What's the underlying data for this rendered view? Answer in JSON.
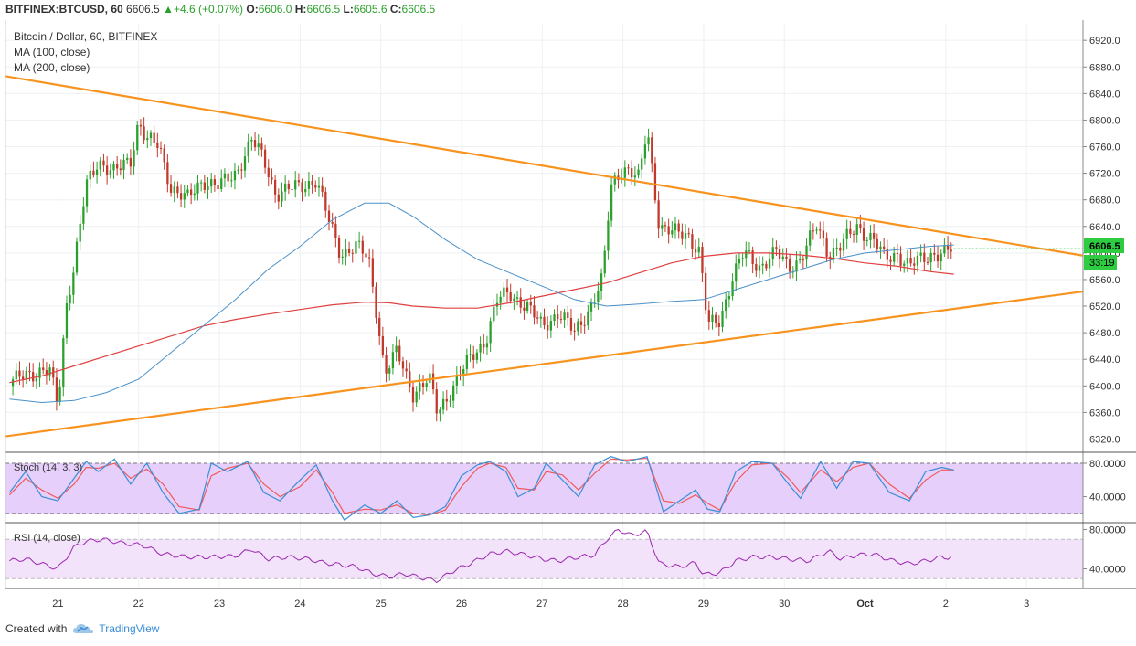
{
  "header": {
    "symbol": "BITFINEX:BTCUSD, 60",
    "last": "6606.5",
    "change": "+4.6 (+0.07%)",
    "o_label": "O:",
    "o_val": "6606.0",
    "h_label": "H:",
    "h_val": "6606.5",
    "l_label": "L:",
    "l_val": "6605.6",
    "c_label": "C:",
    "c_val": "6606.5"
  },
  "legend": {
    "title": "Bitcoin / Dollar, 60, BITFINEX",
    "ma100": "MA (100, close)",
    "ma200": "MA (200, close)"
  },
  "price_badge": "6606.5",
  "countdown_badge": "33:19",
  "stoch_label": "Stoch (14, 3, 3)",
  "rsi_label": "RSI (14, close)",
  "footer": {
    "created_with": "Created with",
    "brand": "TradingView"
  },
  "colors": {
    "up": "#2ca02c",
    "down": "#c0392b",
    "ma100": "#4a90c8",
    "ma200": "#e04040",
    "trend": "#f7931e",
    "stoch_fill": "#e6cffa",
    "rsi_fill": "#f2e3fb",
    "rsi_line": "#9c27b0",
    "stoch_k": "#3a8ed6",
    "stoch_d": "#f05a5a"
  },
  "chart_data": [
    {
      "type": "candlestick",
      "title": "Bitcoin / Dollar, 60, BITFINEX",
      "x_ticks": [
        "21",
        "22",
        "23",
        "24",
        "25",
        "26",
        "27",
        "28",
        "29",
        "30",
        "Oct",
        "2",
        "3"
      ],
      "y_ticks": [
        6320,
        6360,
        6400,
        6440,
        6480,
        6520,
        6560,
        6600,
        6640,
        6680,
        6720,
        6760,
        6800,
        6840,
        6880,
        6920
      ],
      "y_tick_labels": [
        "6320.0",
        "6360.0",
        "6400.0",
        "6440.0",
        "6480.0",
        "6520.0",
        "6560.0",
        "6600.0",
        "6640.0",
        "6680.0",
        "6720.0",
        "6760.0",
        "6800.0",
        "6840.0",
        "6880.0",
        "6920.0"
      ],
      "ylim": [
        6300,
        6945
      ],
      "xlim_days": [
        20.35,
        33.7
      ],
      "price_path": [
        [
          20.4,
          6400
        ],
        [
          20.6,
          6420
        ],
        [
          20.9,
          6420
        ],
        [
          21.0,
          6370
        ],
        [
          21.1,
          6520
        ],
        [
          21.2,
          6580
        ],
        [
          21.35,
          6700
        ],
        [
          21.5,
          6740
        ],
        [
          21.7,
          6720
        ],
        [
          21.9,
          6740
        ],
        [
          22.0,
          6800
        ],
        [
          22.1,
          6770
        ],
        [
          22.25,
          6760
        ],
        [
          22.4,
          6700
        ],
        [
          22.6,
          6680
        ],
        [
          22.8,
          6710
        ],
        [
          23.0,
          6700
        ],
        [
          23.2,
          6720
        ],
        [
          23.4,
          6770
        ],
        [
          23.55,
          6740
        ],
        [
          23.7,
          6690
        ],
        [
          24.0,
          6700
        ],
        [
          24.2,
          6710
        ],
        [
          24.35,
          6650
        ],
        [
          24.5,
          6600
        ],
        [
          24.7,
          6610
        ],
        [
          24.85,
          6590
        ],
        [
          24.95,
          6510
        ],
        [
          25.05,
          6420
        ],
        [
          25.2,
          6450
        ],
        [
          25.4,
          6390
        ],
        [
          25.6,
          6410
        ],
        [
          25.7,
          6360
        ],
        [
          25.9,
          6400
        ],
        [
          26.1,
          6440
        ],
        [
          26.3,
          6470
        ],
        [
          26.45,
          6530
        ],
        [
          26.6,
          6540
        ],
        [
          26.8,
          6520
        ],
        [
          27.0,
          6490
        ],
        [
          27.2,
          6510
        ],
        [
          27.4,
          6480
        ],
        [
          27.6,
          6520
        ],
        [
          27.75,
          6560
        ],
        [
          27.85,
          6700
        ],
        [
          28.0,
          6730
        ],
        [
          28.2,
          6710
        ],
        [
          28.3,
          6790
        ],
        [
          28.45,
          6640
        ],
        [
          28.6,
          6630
        ],
        [
          28.8,
          6630
        ],
        [
          28.95,
          6600
        ],
        [
          29.05,
          6490
        ],
        [
          29.2,
          6500
        ],
        [
          29.35,
          6560
        ],
        [
          29.5,
          6600
        ],
        [
          29.7,
          6580
        ],
        [
          29.9,
          6600
        ],
        [
          30.05,
          6580
        ],
        [
          30.2,
          6590
        ],
        [
          30.4,
          6640
        ],
        [
          30.55,
          6600
        ],
        [
          30.7,
          6610
        ],
        [
          30.9,
          6640
        ],
        [
          31.1,
          6620
        ],
        [
          31.25,
          6590
        ],
        [
          31.4,
          6600
        ],
        [
          31.55,
          6580
        ],
        [
          31.7,
          6590
        ],
        [
          31.85,
          6600
        ],
        [
          32.0,
          6600
        ],
        [
          32.1,
          6606.5
        ]
      ],
      "ma100_path": [
        [
          20.4,
          6380
        ],
        [
          20.8,
          6375
        ],
        [
          21.2,
          6378
        ],
        [
          21.6,
          6390
        ],
        [
          22.0,
          6410
        ],
        [
          22.4,
          6450
        ],
        [
          22.8,
          6490
        ],
        [
          23.2,
          6530
        ],
        [
          23.6,
          6575
        ],
        [
          24.0,
          6610
        ],
        [
          24.4,
          6650
        ],
        [
          24.8,
          6675
        ],
        [
          25.1,
          6675
        ],
        [
          25.4,
          6655
        ],
        [
          25.8,
          6620
        ],
        [
          26.2,
          6590
        ],
        [
          26.6,
          6570
        ],
        [
          27.0,
          6550
        ],
        [
          27.4,
          6530
        ],
        [
          27.8,
          6520
        ],
        [
          28.2,
          6523
        ],
        [
          28.6,
          6527
        ],
        [
          29.0,
          6530
        ],
        [
          29.4,
          6545
        ],
        [
          29.8,
          6560
        ],
        [
          30.2,
          6575
        ],
        [
          30.6,
          6590
        ],
        [
          31.0,
          6600
        ],
        [
          31.4,
          6605
        ],
        [
          31.8,
          6610
        ],
        [
          32.1,
          6612
        ]
      ],
      "ma200_path": [
        [
          20.4,
          6405
        ],
        [
          20.8,
          6415
        ],
        [
          21.2,
          6430
        ],
        [
          21.6,
          6445
        ],
        [
          22.0,
          6460
        ],
        [
          22.4,
          6475
        ],
        [
          22.8,
          6490
        ],
        [
          23.2,
          6500
        ],
        [
          23.6,
          6508
        ],
        [
          24.0,
          6515
        ],
        [
          24.4,
          6522
        ],
        [
          24.8,
          6526
        ],
        [
          25.1,
          6525
        ],
        [
          25.4,
          6520
        ],
        [
          25.8,
          6517
        ],
        [
          26.2,
          6517
        ],
        [
          26.6,
          6525
        ],
        [
          27.0,
          6535
        ],
        [
          27.4,
          6545
        ],
        [
          27.8,
          6555
        ],
        [
          28.2,
          6570
        ],
        [
          28.6,
          6585
        ],
        [
          29.0,
          6595
        ],
        [
          29.4,
          6600
        ],
        [
          29.8,
          6600
        ],
        [
          30.2,
          6597
        ],
        [
          30.6,
          6592
        ],
        [
          31.0,
          6585
        ],
        [
          31.4,
          6580
        ],
        [
          31.8,
          6572
        ],
        [
          32.1,
          6568
        ]
      ],
      "trendlines": [
        {
          "from": [
            20.35,
            6866
          ],
          "to": [
            33.7,
            6596
          ]
        },
        {
          "from": [
            20.35,
            6324
          ],
          "to": [
            33.7,
            6542
          ]
        }
      ]
    },
    {
      "type": "line",
      "name": "Stoch (14, 3, 3)",
      "y_ticks": [
        40,
        80
      ],
      "y_tick_labels": [
        "40.0000",
        "80.0000"
      ],
      "band": [
        20,
        80
      ],
      "ylim": [
        10,
        92
      ],
      "k_path": [
        [
          20.4,
          45
        ],
        [
          20.6,
          70
        ],
        [
          20.8,
          40
        ],
        [
          21.0,
          35
        ],
        [
          21.2,
          62
        ],
        [
          21.35,
          82
        ],
        [
          21.5,
          70
        ],
        [
          21.7,
          85
        ],
        [
          21.9,
          55
        ],
        [
          22.1,
          80
        ],
        [
          22.3,
          45
        ],
        [
          22.5,
          20
        ],
        [
          22.75,
          25
        ],
        [
          22.9,
          80
        ],
        [
          23.1,
          70
        ],
        [
          23.35,
          82
        ],
        [
          23.55,
          45
        ],
        [
          23.75,
          35
        ],
        [
          24.0,
          60
        ],
        [
          24.2,
          78
        ],
        [
          24.4,
          35
        ],
        [
          24.55,
          12
        ],
        [
          24.8,
          30
        ],
        [
          25.0,
          20
        ],
        [
          25.2,
          35
        ],
        [
          25.4,
          15
        ],
        [
          25.6,
          18
        ],
        [
          25.8,
          28
        ],
        [
          26.0,
          65
        ],
        [
          26.2,
          78
        ],
        [
          26.35,
          82
        ],
        [
          26.55,
          70
        ],
        [
          26.7,
          40
        ],
        [
          26.9,
          50
        ],
        [
          27.05,
          80
        ],
        [
          27.25,
          60
        ],
        [
          27.45,
          40
        ],
        [
          27.65,
          78
        ],
        [
          27.85,
          88
        ],
        [
          28.05,
          82
        ],
        [
          28.3,
          88
        ],
        [
          28.5,
          22
        ],
        [
          28.7,
          35
        ],
        [
          28.9,
          48
        ],
        [
          29.05,
          25
        ],
        [
          29.2,
          22
        ],
        [
          29.4,
          70
        ],
        [
          29.6,
          82
        ],
        [
          29.85,
          80
        ],
        [
          30.05,
          55
        ],
        [
          30.2,
          38
        ],
        [
          30.45,
          82
        ],
        [
          30.65,
          50
        ],
        [
          30.85,
          82
        ],
        [
          31.05,
          80
        ],
        [
          31.3,
          45
        ],
        [
          31.55,
          35
        ],
        [
          31.75,
          70
        ],
        [
          31.95,
          75
        ],
        [
          32.1,
          72
        ]
      ],
      "d_path": [
        [
          20.4,
          42
        ],
        [
          20.6,
          62
        ],
        [
          20.8,
          48
        ],
        [
          21.0,
          38
        ],
        [
          21.2,
          55
        ],
        [
          21.35,
          75
        ],
        [
          21.5,
          74
        ],
        [
          21.7,
          80
        ],
        [
          21.9,
          62
        ],
        [
          22.1,
          73
        ],
        [
          22.3,
          55
        ],
        [
          22.5,
          28
        ],
        [
          22.75,
          24
        ],
        [
          22.9,
          65
        ],
        [
          23.1,
          74
        ],
        [
          23.35,
          80
        ],
        [
          23.55,
          55
        ],
        [
          23.75,
          40
        ],
        [
          24.0,
          52
        ],
        [
          24.2,
          72
        ],
        [
          24.4,
          45
        ],
        [
          24.55,
          20
        ],
        [
          24.8,
          25
        ],
        [
          25.0,
          24
        ],
        [
          25.2,
          30
        ],
        [
          25.4,
          20
        ],
        [
          25.6,
          18
        ],
        [
          25.8,
          24
        ],
        [
          26.0,
          52
        ],
        [
          26.2,
          74
        ],
        [
          26.35,
          80
        ],
        [
          26.55,
          75
        ],
        [
          26.7,
          50
        ],
        [
          26.9,
          48
        ],
        [
          27.05,
          70
        ],
        [
          27.25,
          66
        ],
        [
          27.45,
          48
        ],
        [
          27.65,
          68
        ],
        [
          27.85,
          85
        ],
        [
          28.05,
          84
        ],
        [
          28.3,
          86
        ],
        [
          28.5,
          35
        ],
        [
          28.7,
          32
        ],
        [
          28.9,
          42
        ],
        [
          29.05,
          32
        ],
        [
          29.2,
          24
        ],
        [
          29.4,
          58
        ],
        [
          29.6,
          78
        ],
        [
          29.85,
          80
        ],
        [
          30.05,
          62
        ],
        [
          30.2,
          45
        ],
        [
          30.45,
          72
        ],
        [
          30.65,
          58
        ],
        [
          30.85,
          75
        ],
        [
          31.05,
          80
        ],
        [
          31.3,
          55
        ],
        [
          31.55,
          38
        ],
        [
          31.75,
          60
        ],
        [
          31.95,
          72
        ],
        [
          32.1,
          72
        ]
      ]
    },
    {
      "type": "line",
      "name": "RSI (14, close)",
      "y_ticks": [
        40,
        80
      ],
      "y_tick_labels": [
        "40.0000",
        "80.0000"
      ],
      "band": [
        30,
        70
      ],
      "ylim": [
        20,
        86
      ],
      "values_path": [
        [
          20.4,
          48
        ],
        [
          20.6,
          50
        ],
        [
          20.8,
          45
        ],
        [
          21.0,
          40
        ],
        [
          21.2,
          62
        ],
        [
          21.35,
          68
        ],
        [
          21.55,
          70
        ],
        [
          21.8,
          66
        ],
        [
          22.05,
          64
        ],
        [
          22.3,
          55
        ],
        [
          22.6,
          52
        ],
        [
          22.9,
          52
        ],
        [
          23.2,
          53
        ],
        [
          23.4,
          60
        ],
        [
          23.6,
          50
        ],
        [
          23.85,
          52
        ],
        [
          24.1,
          50
        ],
        [
          24.3,
          46
        ],
        [
          24.5,
          44
        ],
        [
          24.7,
          42
        ],
        [
          24.9,
          35
        ],
        [
          25.1,
          32
        ],
        [
          25.3,
          35
        ],
        [
          25.55,
          30
        ],
        [
          25.7,
          28
        ],
        [
          25.9,
          38
        ],
        [
          26.1,
          45
        ],
        [
          26.35,
          55
        ],
        [
          26.55,
          58
        ],
        [
          26.8,
          54
        ],
        [
          27.0,
          50
        ],
        [
          27.2,
          48
        ],
        [
          27.45,
          52
        ],
        [
          27.65,
          54
        ],
        [
          27.8,
          70
        ],
        [
          27.95,
          80
        ],
        [
          28.1,
          74
        ],
        [
          28.3,
          78
        ],
        [
          28.45,
          45
        ],
        [
          28.7,
          42
        ],
        [
          28.9,
          46
        ],
        [
          29.0,
          34
        ],
        [
          29.2,
          36
        ],
        [
          29.4,
          48
        ],
        [
          29.6,
          52
        ],
        [
          29.85,
          52
        ],
        [
          30.05,
          50
        ],
        [
          30.3,
          48
        ],
        [
          30.55,
          58
        ],
        [
          30.7,
          50
        ],
        [
          30.9,
          54
        ],
        [
          31.1,
          55
        ],
        [
          31.35,
          48
        ],
        [
          31.55,
          45
        ],
        [
          31.75,
          48
        ],
        [
          31.95,
          52
        ],
        [
          32.1,
          51
        ]
      ]
    }
  ]
}
